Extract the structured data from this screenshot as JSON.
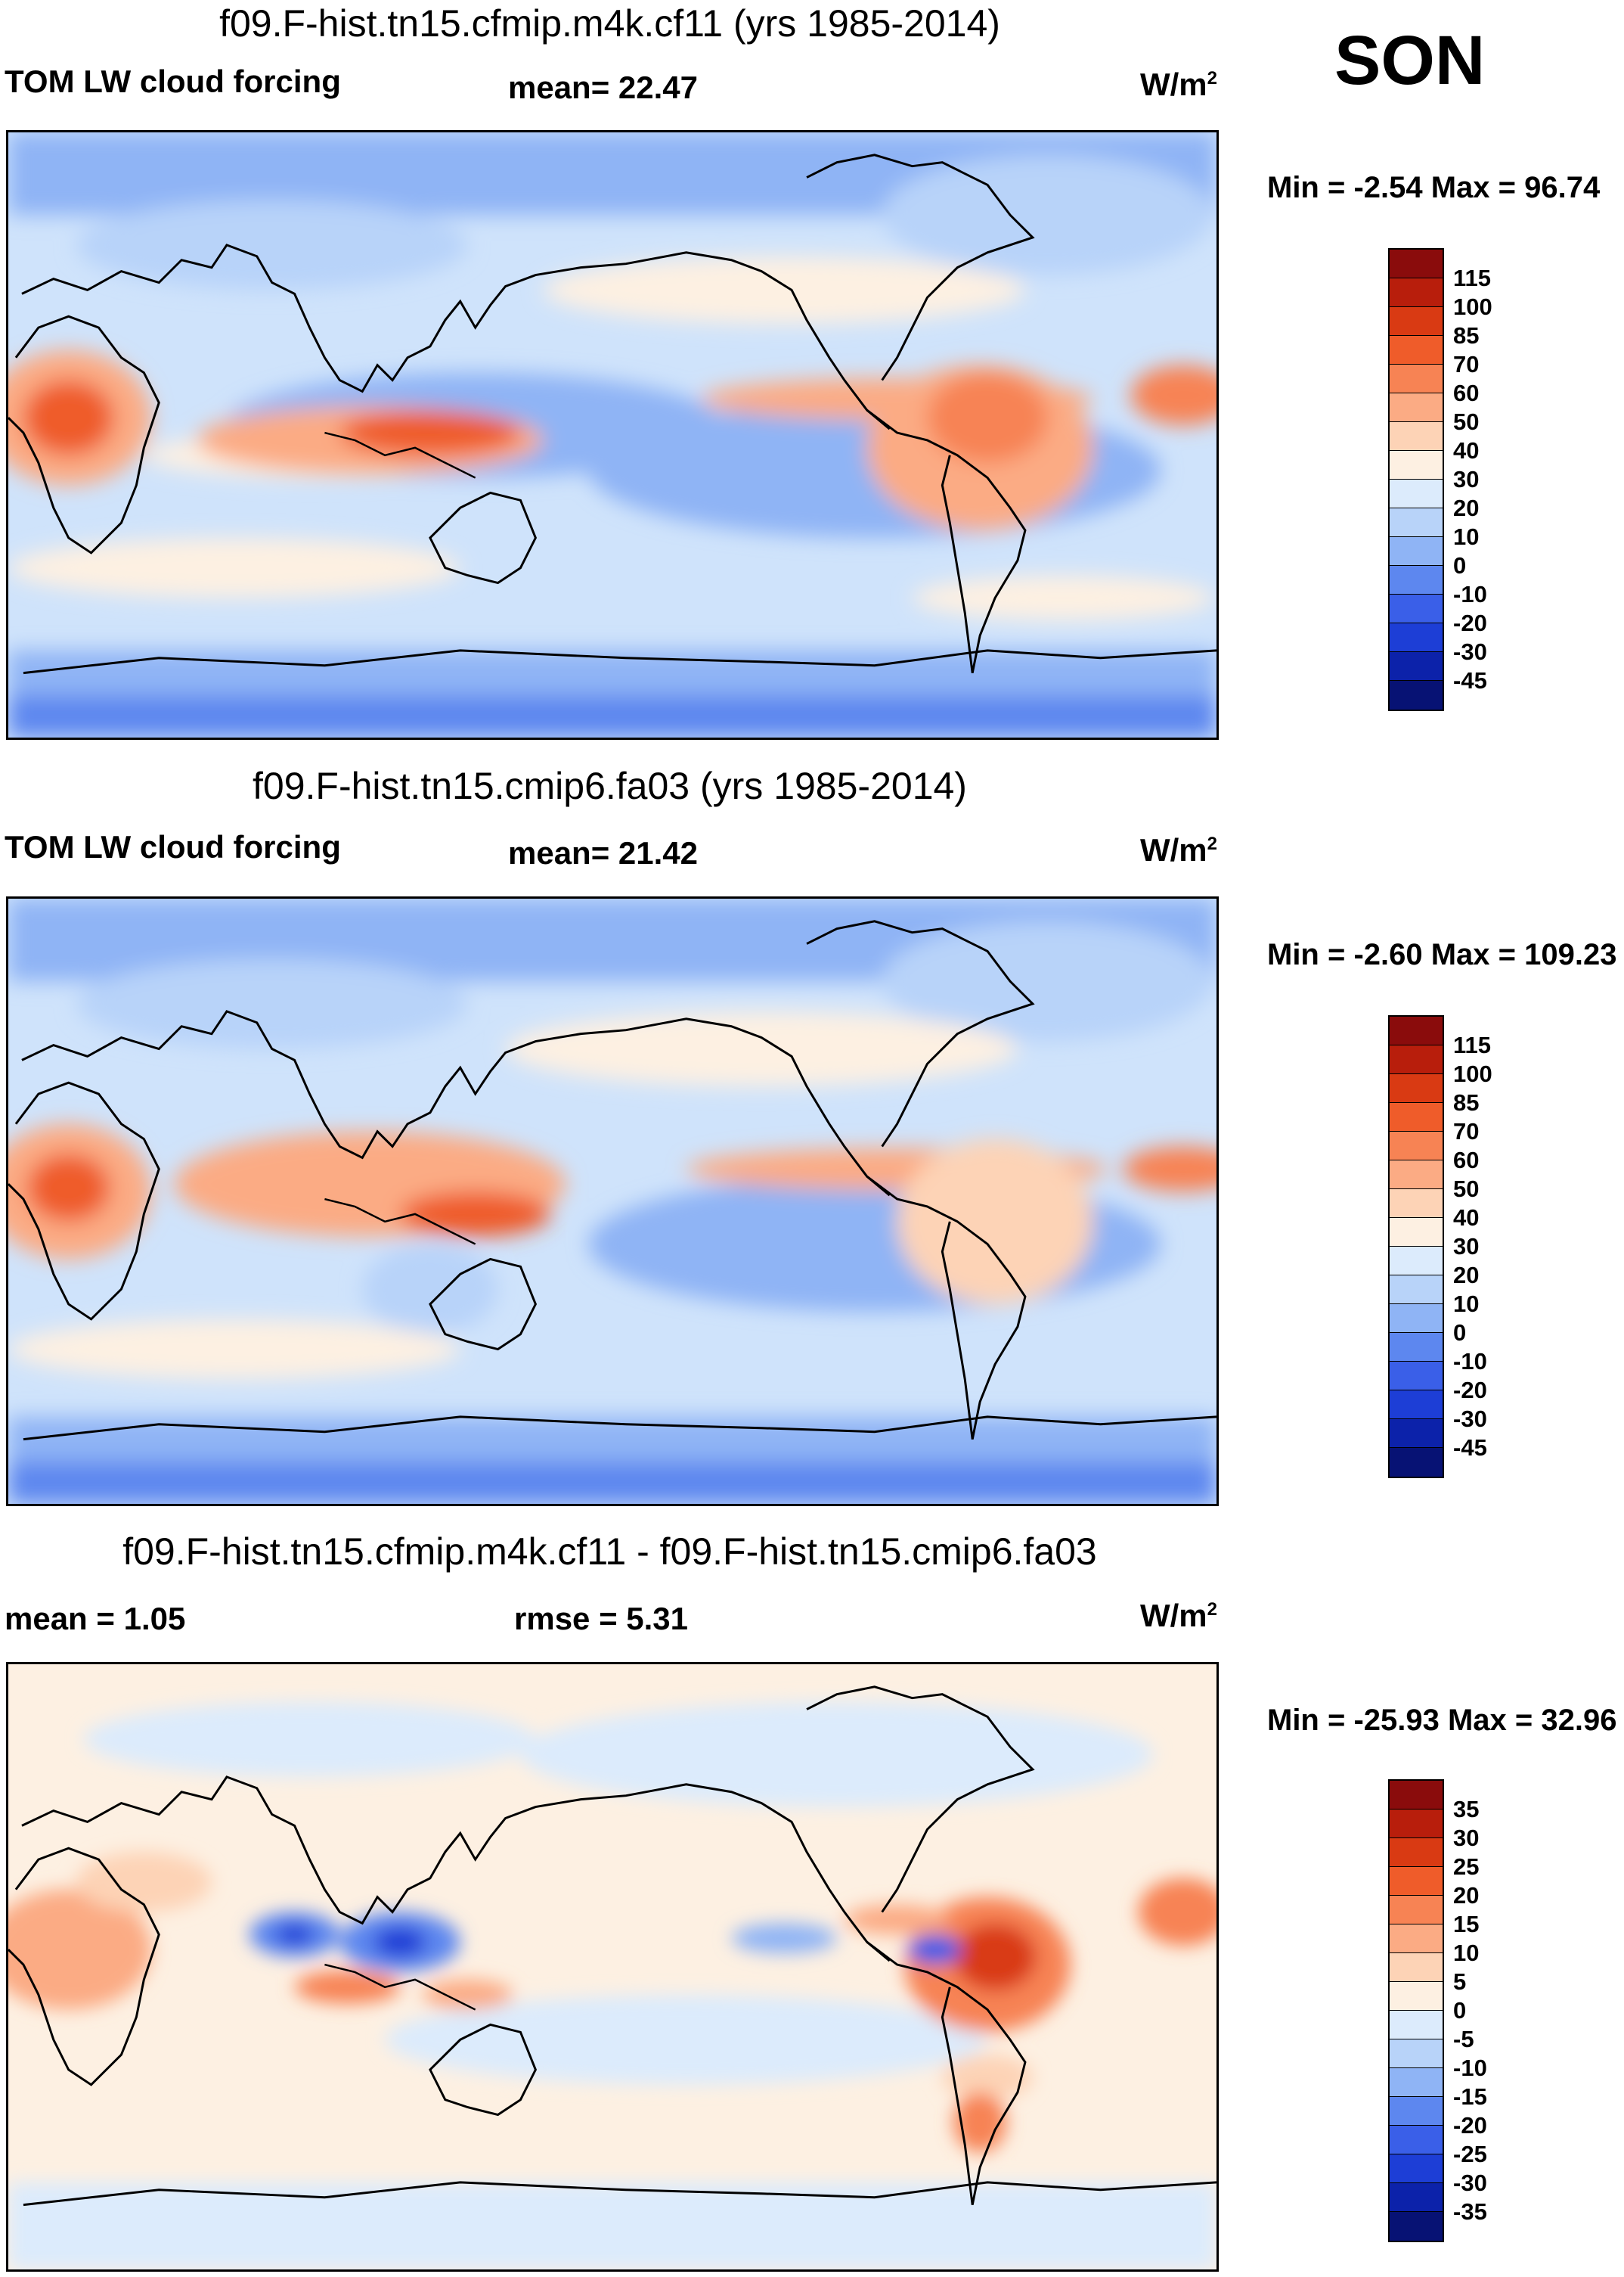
{
  "season": "SON",
  "panels": [
    {
      "title": "f09.F-hist.tn15.cfmip.m4k.cf11 (yrs 1985-2014)",
      "left_label": "TOM LW cloud forcing",
      "stat_text": "mean=  22.47",
      "unit": "W/m",
      "unit_exp": "2",
      "minmax": "Min =  -2.54 Max =  96.74"
    },
    {
      "title": "f09.F-hist.tn15.cmip6.fa03 (yrs 1985-2014)",
      "left_label": "TOM LW cloud forcing",
      "stat_text": "mean=  21.42",
      "unit": "W/m",
      "unit_exp": "2",
      "minmax": "Min =  -2.60 Max = 109.23"
    },
    {
      "title": "f09.F-hist.tn15.cfmip.m4k.cf11 - f09.F-hist.tn15.cmip6.fa03",
      "left_label": "mean =    1.05",
      "stat_text": "rmse =    5.31",
      "unit": "W/m",
      "unit_exp": "2",
      "minmax": "Min = -25.93 Max =  32.96"
    }
  ],
  "colorbars": {
    "absolute": {
      "labels": [
        "115",
        "100",
        "85",
        "70",
        "60",
        "50",
        "40",
        "30",
        "20",
        "10",
        "0",
        "-10",
        "-20",
        "-30",
        "-45"
      ],
      "colors": [
        "#8a0c0c",
        "#b81e0c",
        "#d93a13",
        "#ef5c2a",
        "#f78354",
        "#fbab84",
        "#fdd3b6",
        "#fdf0e2",
        "#dcebfc",
        "#b8d3f9",
        "#8fb4f5",
        "#5d87ef",
        "#3a5fe8",
        "#1d3ed6",
        "#0c22aa",
        "#071274"
      ]
    },
    "difference": {
      "labels": [
        "35",
        "30",
        "25",
        "20",
        "15",
        "10",
        "5",
        "0",
        "-5",
        "-10",
        "-15",
        "-20",
        "-25",
        "-30",
        "-35"
      ],
      "colors": [
        "#8a0c0c",
        "#b81e0c",
        "#d93a13",
        "#ef5c2a",
        "#f78354",
        "#fbab84",
        "#fdd3b6",
        "#fdf0e2",
        "#dcebfc",
        "#b8d3f9",
        "#8fb4f5",
        "#5d87ef",
        "#3a5fe8",
        "#1d3ed6",
        "#0c22aa",
        "#071274"
      ]
    }
  },
  "chart_data": [
    {
      "type": "heatmap",
      "title": "f09.F-hist.tn15.cfmip.m4k.cf11 (yrs 1985-2014)",
      "variable": "TOM LW cloud forcing",
      "units": "W/m2",
      "season": "SON",
      "mean": 22.47,
      "min": -2.54,
      "max": 96.74,
      "levels": [
        -45,
        -30,
        -20,
        -10,
        0,
        10,
        20,
        30,
        40,
        50,
        60,
        70,
        85,
        100,
        115
      ],
      "xlim": [
        0,
        360
      ],
      "ylim": [
        -90,
        90
      ]
    },
    {
      "type": "heatmap",
      "title": "f09.F-hist.tn15.cmip6.fa03 (yrs 1985-2014)",
      "variable": "TOM LW cloud forcing",
      "units": "W/m2",
      "season": "SON",
      "mean": 21.42,
      "min": -2.6,
      "max": 109.23,
      "levels": [
        -45,
        -30,
        -20,
        -10,
        0,
        10,
        20,
        30,
        40,
        50,
        60,
        70,
        85,
        100,
        115
      ],
      "xlim": [
        0,
        360
      ],
      "ylim": [
        -90,
        90
      ]
    },
    {
      "type": "heatmap",
      "title": "f09.F-hist.tn15.cfmip.m4k.cf11 - f09.F-hist.tn15.cmip6.fa03",
      "units": "W/m2",
      "season": "SON",
      "mean": 1.05,
      "rmse": 5.31,
      "min": -25.93,
      "max": 32.96,
      "levels": [
        -35,
        -30,
        -25,
        -20,
        -15,
        -10,
        -5,
        0,
        5,
        10,
        15,
        20,
        25,
        30,
        35
      ],
      "xlim": [
        0,
        360
      ],
      "ylim": [
        -90,
        90
      ]
    }
  ]
}
